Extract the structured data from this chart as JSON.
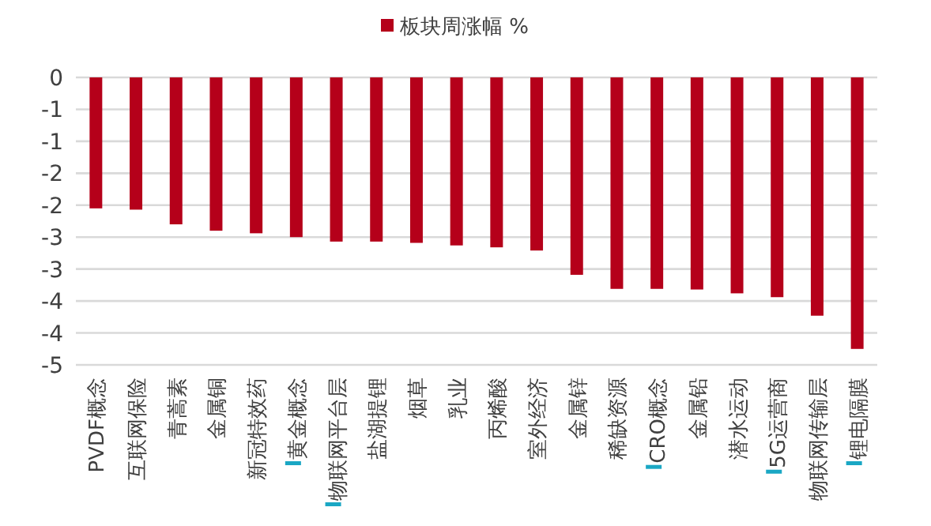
{
  "chart_data": {
    "type": "bar",
    "categories": [
      "PVDF概念",
      "互联网保险",
      "青蒿素",
      "金属铜",
      "新冠特效药",
      "黄金概念",
      "物联网平台层",
      "盐湖提锂",
      "烟草",
      "乳业",
      "丙烯酸",
      "室外经济",
      "金属锌",
      "稀缺资源",
      "CRO概念",
      "金属铅",
      "潜水运动",
      "5G运营商",
      "物联网传输层",
      "锂电隔膜"
    ],
    "series": [
      {
        "name": "板块周涨幅 %",
        "color": "#b5001a",
        "values": [
          -2.05,
          -2.07,
          -2.3,
          -2.4,
          -2.44,
          -2.5,
          -2.57,
          -2.57,
          -2.59,
          -2.63,
          -2.66,
          -2.71,
          -3.09,
          -3.31,
          -3.31,
          -3.32,
          -3.38,
          -3.44,
          -3.73,
          -4.25
        ]
      }
    ],
    "ylim": [
      -4.5,
      0
    ],
    "yticks": [
      0,
      {
        "value": -0.5,
        "label": "-1"
      },
      -1,
      {
        "value": -1.5,
        "label": "-2"
      },
      -2,
      {
        "value": -2.5,
        "label": "-3"
      },
      -3,
      {
        "value": -3.5,
        "label": "-4"
      },
      -4,
      {
        "value": -4.5,
        "label": "-5"
      }
    ],
    "grid": "y",
    "legend": "top"
  }
}
